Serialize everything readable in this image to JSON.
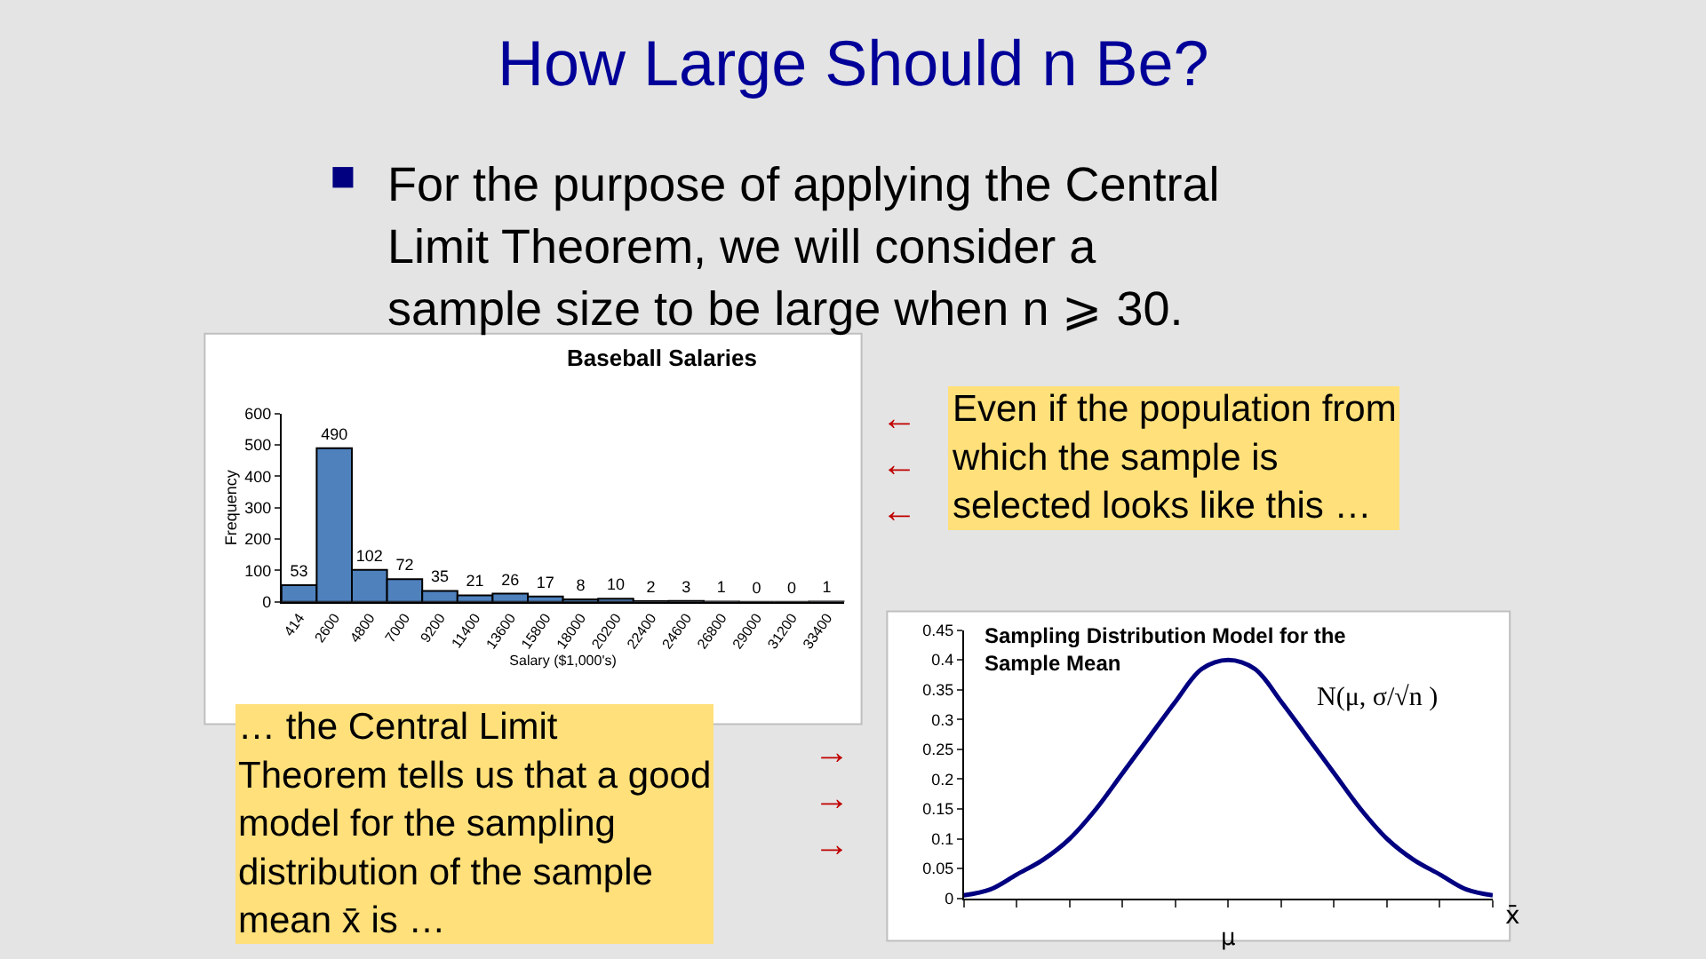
{
  "chart_data": [
    {
      "type": "bar",
      "title": "Baseball Salaries",
      "xlabel": "Salary ($1,000's)",
      "ylabel": "Frequency",
      "categories": [
        "414",
        "2600",
        "4800",
        "7000",
        "9200",
        "11400",
        "13600",
        "15800",
        "18000",
        "20200",
        "22400",
        "24600",
        "26800",
        "29000",
        "31200",
        "33400"
      ],
      "values": [
        53,
        490,
        102,
        72,
        35,
        21,
        26,
        17,
        8,
        10,
        2,
        3,
        1,
        0,
        0,
        1
      ],
      "color": "#4f81bd",
      "ylim": [
        0,
        600
      ],
      "yticks": [
        0,
        100,
        200,
        300,
        400,
        500,
        600
      ],
      "data_labels": true
    },
    {
      "type": "line",
      "title": "Sampling Distribution Model for the Sample Mean",
      "xlabel": "x̄",
      "categories": [
        null,
        null,
        null,
        null,
        null,
        null,
        null,
        null,
        null,
        null,
        null,
        null,
        null,
        null,
        null,
        null,
        null,
        null,
        null,
        null,
        null
      ],
      "values": [
        0.005,
        0.015,
        0.04,
        0.065,
        0.1,
        0.15,
        0.21,
        0.27,
        0.33,
        0.385,
        0.4,
        0.385,
        0.33,
        0.27,
        0.21,
        0.15,
        0.1,
        0.065,
        0.04,
        0.015,
        0.005
      ],
      "color": "#000080",
      "ylim": [
        0,
        0.45
      ],
      "yticks": [
        0,
        0.05,
        0.1,
        0.15,
        0.2,
        0.25,
        0.3,
        0.35,
        0.4,
        0.45
      ],
      "annotations": [
        "N(μ, σ/√n )",
        "μ"
      ],
      "marker": "none",
      "line_style": "solid"
    },
    {
      "type": "other",
      "title": "How Large Should n Be?",
      "annotations": [
        "For the purpose of applying the Central\nLimit Theorem, we will consider a\nsample size to be large when n ⩾ 30.",
        "Even if the population from\nwhich the sample is\nselected looks like this …",
        "… the Central Limit\nTheorem tells us that a good\nmodel for the sampling\ndistribution of the sample\nmean x̄ is …",
        "←\n←\n←",
        "→\n→\n→"
      ]
    }
  ]
}
